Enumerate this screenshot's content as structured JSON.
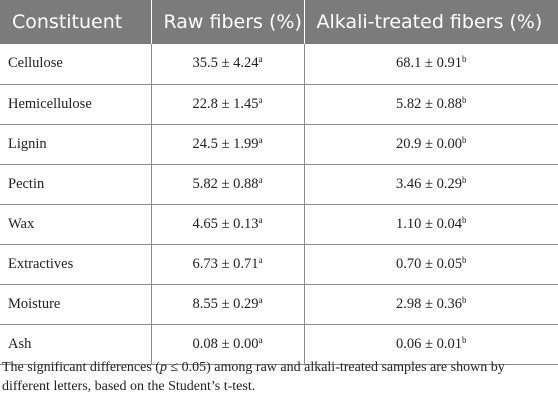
{
  "table": {
    "headers": [
      "Constituent",
      "Raw fibers (%)",
      "Alkali-treated fibers (%)"
    ],
    "rows": [
      {
        "constituent": "Cellulose",
        "raw": "35.5 ± 4.24",
        "raw_sup": "a",
        "treated": "68.1 ± 0.91",
        "treated_sup": "b"
      },
      {
        "constituent": "Hemicellulose",
        "raw": "22.8 ± 1.45",
        "raw_sup": "a",
        "treated": "5.82 ± 0.88",
        "treated_sup": "b"
      },
      {
        "constituent": "Lignin",
        "raw": "24.5 ± 1.99",
        "raw_sup": "a",
        "treated": "20.9 ± 0.00",
        "treated_sup": "b"
      },
      {
        "constituent": "Pectin",
        "raw": "5.82 ± 0.88",
        "raw_sup": "a",
        "treated": "3.46 ± 0.29",
        "treated_sup": "b"
      },
      {
        "constituent": "Wax",
        "raw": "4.65 ± 0.13",
        "raw_sup": "a",
        "treated": "1.10 ± 0.04",
        "treated_sup": "b"
      },
      {
        "constituent": "Extractives",
        "raw": "6.73 ± 0.71",
        "raw_sup": "a",
        "treated": "0.70 ± 0.05",
        "treated_sup": "b"
      },
      {
        "constituent": "Moisture",
        "raw": "8.55 ± 0.29",
        "raw_sup": "a",
        "treated": "2.98 ± 0.36",
        "treated_sup": "b"
      },
      {
        "constituent": "Ash",
        "raw": "0.08 ± 0.00",
        "raw_sup": "a",
        "treated": "0.06 ± 0.01",
        "treated_sup": "b"
      }
    ]
  },
  "footnote": {
    "before": "The significant differences (",
    "italic": "p",
    "after": " ≤ 0.05) among raw and alkali-treated samples are shown by different letters, based on the Student’s t-test."
  },
  "colors": {
    "header_bg": "#7b7b7b",
    "header_text": "#ffffff",
    "rule": "#8a8a8a",
    "body_text": "#222222"
  }
}
